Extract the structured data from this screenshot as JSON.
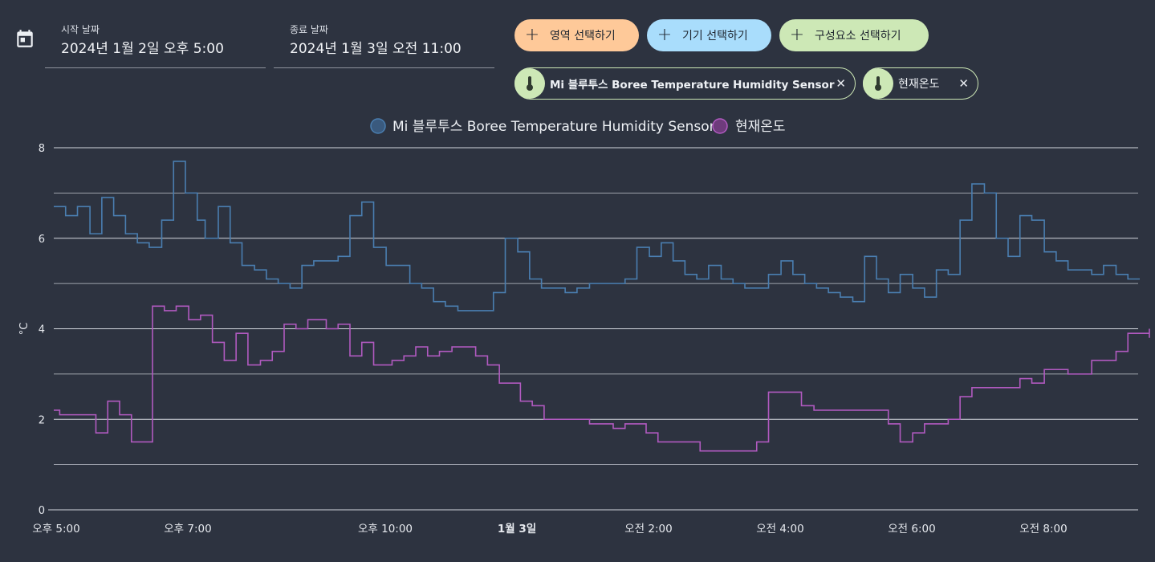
{
  "date_range": {
    "start_label": "시작 날짜",
    "start_value": "2024년 1월 2일 오후 5:00",
    "end_label": "종료 날짜",
    "end_value": "2024년 1월 3일 오전 11:00"
  },
  "target_buttons": [
    {
      "label": "영역 선택하기",
      "color": "#fec999"
    },
    {
      "label": "기기 선택하기",
      "color": "#a9ddfc"
    },
    {
      "label": "구성요소 선택하기",
      "color": "#cde8b6"
    }
  ],
  "chips": [
    {
      "label": "Mi 블루투스 Boree Temperature Humidity Sensor",
      "icon": "thermometer-icon"
    },
    {
      "label": "현재온도",
      "icon": "thermometer-icon"
    }
  ],
  "chart_data": {
    "type": "line",
    "step": true,
    "ylabel": "°C",
    "ylim": [
      0,
      8
    ],
    "yticks": [
      0,
      2,
      4,
      6,
      8
    ],
    "grid": true,
    "legend_position": "top-center",
    "x_unit": "hours since 2024-01-02 17:00",
    "xlim": [
      0,
      16.5
    ],
    "xticks": [
      {
        "t": 0,
        "label": "오후 5:00",
        "bold": false
      },
      {
        "t": 2,
        "label": "오후 7:00",
        "bold": false
      },
      {
        "t": 5,
        "label": "오후 10:00",
        "bold": false
      },
      {
        "t": 7,
        "label": "1월 3일",
        "bold": true
      },
      {
        "t": 9,
        "label": "오전 2:00",
        "bold": false
      },
      {
        "t": 11,
        "label": "오전 4:00",
        "bold": false
      },
      {
        "t": 13,
        "label": "오전 6:00",
        "bold": false
      },
      {
        "t": 15,
        "label": "오전 8:00",
        "bold": false
      }
    ],
    "series": [
      {
        "name": "Mi 블루투스 Boree Temperature Humidity Sensor",
        "color": "#4a7eb0",
        "legend_fill": "#3a5a7e",
        "points": [
          [
            0,
            6.7
          ],
          [
            0.18,
            6.5
          ],
          [
            0.36,
            6.7
          ],
          [
            0.55,
            6.1
          ],
          [
            0.73,
            6.9
          ],
          [
            0.91,
            6.5
          ],
          [
            1.09,
            6.1
          ],
          [
            1.27,
            5.9
          ],
          [
            1.45,
            5.8
          ],
          [
            1.64,
            6.4
          ],
          [
            1.82,
            7.7
          ],
          [
            2.0,
            7.0
          ],
          [
            2.18,
            6.4
          ],
          [
            2.3,
            6.0
          ],
          [
            2.5,
            6.7
          ],
          [
            2.68,
            5.9
          ],
          [
            2.86,
            5.4
          ],
          [
            3.05,
            5.3
          ],
          [
            3.23,
            5.1
          ],
          [
            3.41,
            5.0
          ],
          [
            3.59,
            4.9
          ],
          [
            3.77,
            5.4
          ],
          [
            3.95,
            5.5
          ],
          [
            4.32,
            5.6
          ],
          [
            4.5,
            6.5
          ],
          [
            4.68,
            6.8
          ],
          [
            4.86,
            5.8
          ],
          [
            5.05,
            5.4
          ],
          [
            5.41,
            5.0
          ],
          [
            5.59,
            4.9
          ],
          [
            5.77,
            4.6
          ],
          [
            5.95,
            4.5
          ],
          [
            6.14,
            4.4
          ],
          [
            6.68,
            4.8
          ],
          [
            6.86,
            6.0
          ],
          [
            7.05,
            5.7
          ],
          [
            7.23,
            5.1
          ],
          [
            7.41,
            4.9
          ],
          [
            7.77,
            4.8
          ],
          [
            7.95,
            4.9
          ],
          [
            8.14,
            5.0
          ],
          [
            8.68,
            5.1
          ],
          [
            8.86,
            5.8
          ],
          [
            9.05,
            5.6
          ],
          [
            9.23,
            5.9
          ],
          [
            9.41,
            5.5
          ],
          [
            9.59,
            5.2
          ],
          [
            9.77,
            5.1
          ],
          [
            9.95,
            5.4
          ],
          [
            10.14,
            5.1
          ],
          [
            10.32,
            5.0
          ],
          [
            10.5,
            4.9
          ],
          [
            10.86,
            5.2
          ],
          [
            11.05,
            5.5
          ],
          [
            11.23,
            5.2
          ],
          [
            11.41,
            5.0
          ],
          [
            11.59,
            4.9
          ],
          [
            11.77,
            4.8
          ],
          [
            11.95,
            4.7
          ],
          [
            12.14,
            4.6
          ],
          [
            12.32,
            5.6
          ],
          [
            12.5,
            5.1
          ],
          [
            12.68,
            4.8
          ],
          [
            12.86,
            5.2
          ],
          [
            13.05,
            4.9
          ],
          [
            13.23,
            4.7
          ],
          [
            13.41,
            5.3
          ],
          [
            13.59,
            5.2
          ],
          [
            13.77,
            6.4
          ],
          [
            13.95,
            7.2
          ],
          [
            14.14,
            7.0
          ],
          [
            14.32,
            6.0
          ],
          [
            14.5,
            5.6
          ],
          [
            14.68,
            6.5
          ],
          [
            14.86,
            6.4
          ],
          [
            15.05,
            5.7
          ],
          [
            15.23,
            5.5
          ],
          [
            15.41,
            5.3
          ],
          [
            15.77,
            5.2
          ],
          [
            15.95,
            5.4
          ],
          [
            16.14,
            5.2
          ],
          [
            16.32,
            5.1
          ],
          [
            16.5,
            5.1
          ]
        ]
      },
      {
        "name": "현재온도",
        "color": "#b15ac0",
        "legend_fill": "#6e3b7c",
        "points": [
          [
            0,
            2.2
          ],
          [
            0.09,
            2.1
          ],
          [
            0.64,
            1.7
          ],
          [
            0.82,
            2.4
          ],
          [
            1.0,
            2.1
          ],
          [
            1.18,
            1.5
          ],
          [
            1.5,
            4.5
          ],
          [
            1.68,
            4.4
          ],
          [
            1.86,
            4.5
          ],
          [
            2.05,
            4.2
          ],
          [
            2.23,
            4.3
          ],
          [
            2.41,
            3.7
          ],
          [
            2.59,
            3.3
          ],
          [
            2.77,
            3.9
          ],
          [
            2.95,
            3.2
          ],
          [
            3.14,
            3.3
          ],
          [
            3.32,
            3.5
          ],
          [
            3.5,
            4.1
          ],
          [
            3.68,
            4.0
          ],
          [
            3.86,
            4.2
          ],
          [
            4.14,
            4.0
          ],
          [
            4.32,
            4.1
          ],
          [
            4.5,
            3.4
          ],
          [
            4.68,
            3.7
          ],
          [
            4.86,
            3.2
          ],
          [
            5.14,
            3.3
          ],
          [
            5.32,
            3.4
          ],
          [
            5.5,
            3.6
          ],
          [
            5.68,
            3.4
          ],
          [
            5.86,
            3.5
          ],
          [
            6.05,
            3.6
          ],
          [
            6.41,
            3.4
          ],
          [
            6.59,
            3.2
          ],
          [
            6.77,
            2.8
          ],
          [
            7.09,
            2.4
          ],
          [
            7.27,
            2.3
          ],
          [
            7.45,
            2.0
          ],
          [
            8.14,
            1.9
          ],
          [
            8.5,
            1.8
          ],
          [
            8.68,
            1.9
          ],
          [
            9.0,
            1.7
          ],
          [
            9.18,
            1.5
          ],
          [
            9.82,
            1.3
          ],
          [
            10.68,
            1.5
          ],
          [
            10.86,
            2.6
          ],
          [
            11.36,
            2.3
          ],
          [
            11.55,
            2.2
          ],
          [
            12.68,
            1.9
          ],
          [
            12.86,
            1.5
          ],
          [
            13.05,
            1.7
          ],
          [
            13.23,
            1.9
          ],
          [
            13.59,
            2.0
          ],
          [
            13.77,
            2.5
          ],
          [
            13.95,
            2.7
          ],
          [
            14.68,
            2.9
          ],
          [
            14.86,
            2.8
          ],
          [
            15.05,
            3.1
          ],
          [
            15.41,
            3.0
          ],
          [
            15.77,
            3.3
          ],
          [
            16.14,
            3.5
          ],
          [
            16.32,
            3.9
          ],
          [
            16.86,
            4.0
          ],
          [
            17.05,
            3.8
          ],
          [
            17.23,
            3.8
          ]
        ]
      }
    ]
  }
}
